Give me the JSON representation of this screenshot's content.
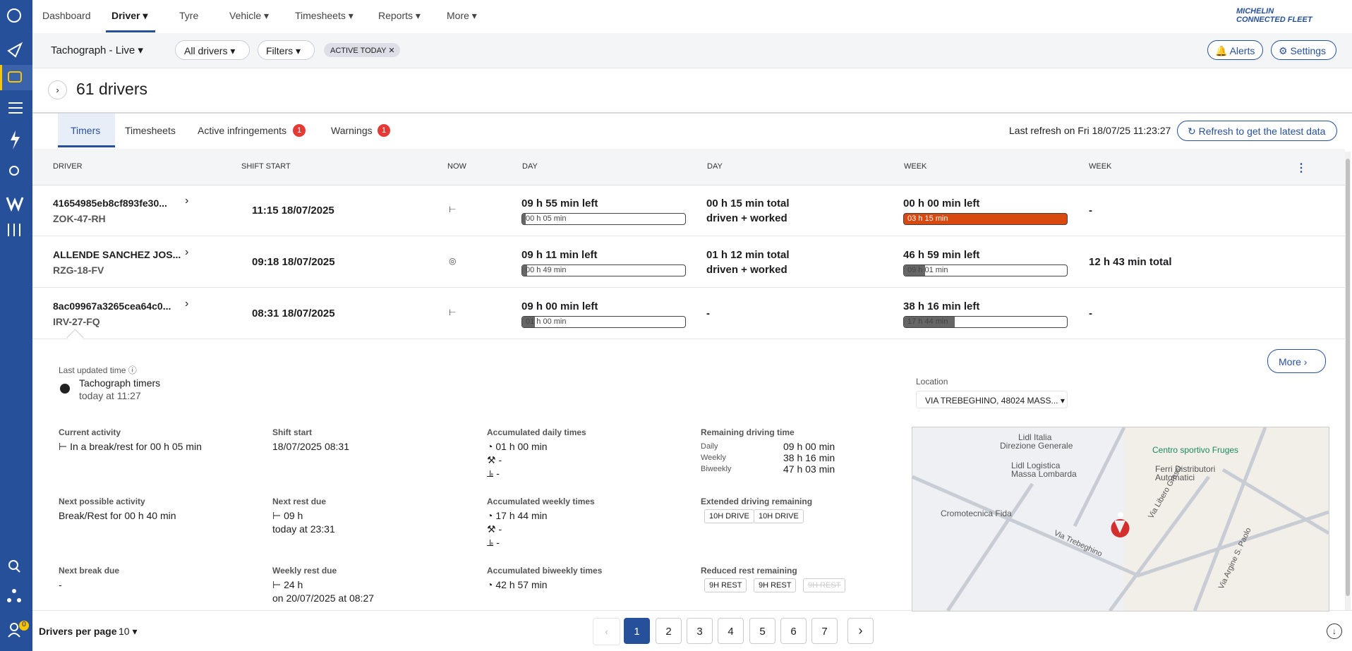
{
  "sidebar": {
    "badge": "0"
  },
  "nav": {
    "items": [
      "Dashboard",
      "Driver",
      "Tyre",
      "Vehicle",
      "Timesheets",
      "Reports",
      "More"
    ],
    "logo": [
      "MICHELIN",
      "CONNECTED FLEET"
    ]
  },
  "toolbar": {
    "view": "Tachograph - Live",
    "drivers": "All drivers",
    "filters": "Filters",
    "chip": "ACTIVE TODAY",
    "alerts": "Alerts",
    "settings": "Settings"
  },
  "header": {
    "title": "61 drivers"
  },
  "tabs": {
    "items": [
      {
        "label": "Timers"
      },
      {
        "label": "Timesheets"
      },
      {
        "label": "Active infringements",
        "badge": "1"
      },
      {
        "label": "Warnings",
        "badge": "1"
      }
    ],
    "refresh_label": "Last refresh on",
    "refresh_time": "Fri 18/07/25 11:23:27",
    "refresh_button": "Refresh to get the latest data"
  },
  "table": {
    "columns": [
      "DRIVER",
      "SHIFT START",
      "NOW",
      "DAY",
      "DAY",
      "WEEK",
      "WEEK"
    ],
    "rows": [
      {
        "driver": "41654985eb8cf893fe30...",
        "plate": "ZOK-47-RH",
        "shift": "11:15 18/07/2025",
        "day_left": "09 h 55 min left",
        "day_bar": "00 h 05 min",
        "day_total": [
          "00 h 15 min total",
          "driven + worked"
        ],
        "week_left": "00 h 00 min left",
        "week_bar": "03 h 15 min",
        "week_total": "-"
      },
      {
        "driver": "ALLENDE SANCHEZ JOS...",
        "plate": "RZG-18-FV",
        "shift": "09:18 18/07/2025",
        "day_left": "09 h 11 min left",
        "day_bar": "00 h 49 min",
        "day_total": [
          "01 h 12 min total",
          "driven + worked"
        ],
        "week_left": "46 h 59 min left",
        "week_bar": "09 h 01 min",
        "week_total": "12 h 43 min total"
      },
      {
        "driver": "8ac09967a3265cea64c0...",
        "plate": "IRV-27-FQ",
        "shift": "08:31 18/07/2025",
        "day_left": "09 h 00 min left",
        "day_bar": "01 h 00 min",
        "day_total": [
          "-"
        ],
        "week_left": "38 h 16 min left",
        "week_bar": "17 h 44 min",
        "week_total": "-"
      }
    ]
  },
  "details": {
    "last_updated": "Last updated time",
    "timers": "Tachograph timers",
    "timers_time": "today at 11:27",
    "location_label": "Location",
    "location": "VIA TREBEGHINO, 48024 MASS...",
    "more": "More",
    "fields": [
      {
        "label": "Current activity",
        "lines": [
          "In a break/rest for 00 h 05 min"
        ]
      },
      {
        "label": "Shift start",
        "lines": [
          "18/07/2025 08:31"
        ]
      },
      {
        "label": "Accumulated daily times",
        "lines": [
          "01 h 00 min",
          "-",
          "-"
        ]
      },
      {
        "label": "Remaining driving time",
        "pairs": [
          [
            "Daily",
            "09 h 00 min"
          ],
          [
            "Weekly",
            "38 h 16 min"
          ],
          [
            "Biweekly",
            "47 h 03 min"
          ]
        ]
      },
      {
        "label": "Next possible activity",
        "lines": [
          "Break/Rest for 00 h 40 min"
        ]
      },
      {
        "label": "Next rest due",
        "lines": [
          "09 h",
          "today at 23:31"
        ]
      },
      {
        "label": "Accumulated weekly times",
        "lines": [
          "17 h 44 min",
          "-",
          "-"
        ]
      },
      {
        "label": "Extended driving remaining",
        "chips": [
          "10H DRIVE",
          "10H DRIVE"
        ]
      },
      {
        "label": "Next break due",
        "lines": [
          "-"
        ]
      },
      {
        "label": "Weekly rest due",
        "lines": [
          "24 h",
          "on 20/07/2025 at 08:27"
        ]
      },
      {
        "label": "Accumulated biweekly times",
        "lines": [
          "42 h 57 min"
        ]
      },
      {
        "label": "Reduced rest remaining",
        "chips": [
          "9H REST",
          "9H REST",
          "9H REST"
        ]
      }
    ],
    "map": [
      "Lidl Italia",
      "Direzione Generale",
      "Lidl Logistica",
      "Massa Lombarda",
      "Centro sportivo Fruges",
      "Ferri Distributori",
      "Automatici",
      "Cromotecnica Fida",
      "Via Trebeghino",
      "Via Libero Grassi",
      "Via Argine S. Paolo"
    ]
  },
  "footer": {
    "per_page_label": "Drivers per page",
    "per_page": "10",
    "pages": [
      "1",
      "2",
      "3",
      "4",
      "5",
      "6",
      "7"
    ]
  }
}
